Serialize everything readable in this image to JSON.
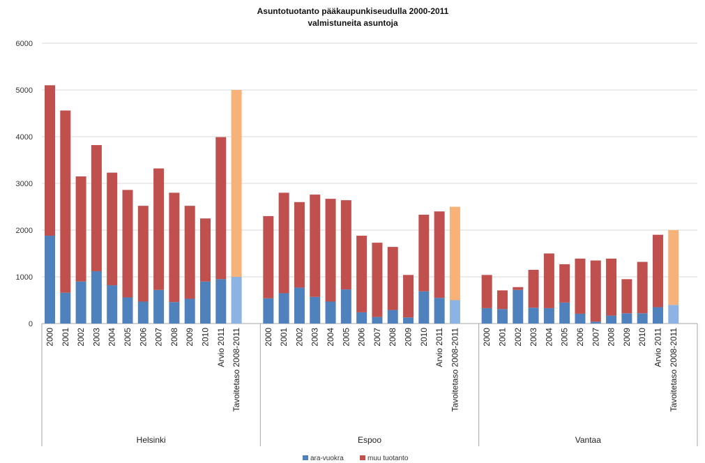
{
  "chart_data": {
    "type": "bar",
    "stacked": true,
    "title": "Asuntotuotanto pääkaupunkiseudulla  2000-2011",
    "subtitle": "valmistuneita asuntoja",
    "ylim": [
      0,
      6000
    ],
    "yticks": [
      0,
      1000,
      2000,
      3000,
      4000,
      5000,
      6000
    ],
    "grid": true,
    "legend_position": "bottom",
    "legend": [
      "ara-vuokra",
      "muu tuotanto"
    ],
    "colors": {
      "ara": "#4f81bd",
      "muu": "#c0504d",
      "ara_target": "#8db3e2",
      "muu_target": "#f7b27a",
      "grid": "#d9d9d9",
      "axis": "#a6a6a6"
    },
    "groups": [
      {
        "name": "Helsinki",
        "categories": [
          "2000",
          "2001",
          "2002",
          "2003",
          "2004",
          "2005",
          "2006",
          "2007",
          "2008",
          "2009",
          "2010",
          "Arvio 2011",
          "Tavoitetaso 2008-2011"
        ],
        "ara": [
          1880,
          660,
          900,
          1120,
          820,
          560,
          470,
          720,
          460,
          530,
          900,
          950,
          1000
        ],
        "total": [
          5100,
          4560,
          3150,
          3820,
          3230,
          2860,
          2520,
          3320,
          2800,
          2520,
          2250,
          3990,
          5000
        ]
      },
      {
        "name": "Espoo",
        "categories": [
          "2000",
          "2001",
          "2002",
          "2003",
          "2004",
          "2005",
          "2006",
          "2007",
          "2008",
          "2009",
          "2010",
          "Arvio 2011",
          "Tavoitetaso 2008-2011"
        ],
        "ara": [
          540,
          650,
          770,
          570,
          470,
          730,
          240,
          140,
          290,
          130,
          690,
          550,
          500
        ],
        "total": [
          2300,
          2800,
          2600,
          2760,
          2670,
          2640,
          1880,
          1730,
          1640,
          1040,
          2330,
          2400,
          2500
        ]
      },
      {
        "name": "Vantaa",
        "categories": [
          "2000",
          "2001",
          "2002",
          "2003",
          "2004",
          "2005",
          "2006",
          "2007",
          "2008",
          "2009",
          "2010",
          "Arvio 2011",
          "Tavoitetaso 2008-2011"
        ],
        "ara": [
          330,
          310,
          720,
          340,
          330,
          450,
          210,
          40,
          170,
          220,
          220,
          350,
          400
        ],
        "total": [
          1040,
          710,
          780,
          1150,
          1500,
          1270,
          1390,
          1350,
          1390,
          950,
          1320,
          1900,
          2000
        ]
      }
    ]
  }
}
